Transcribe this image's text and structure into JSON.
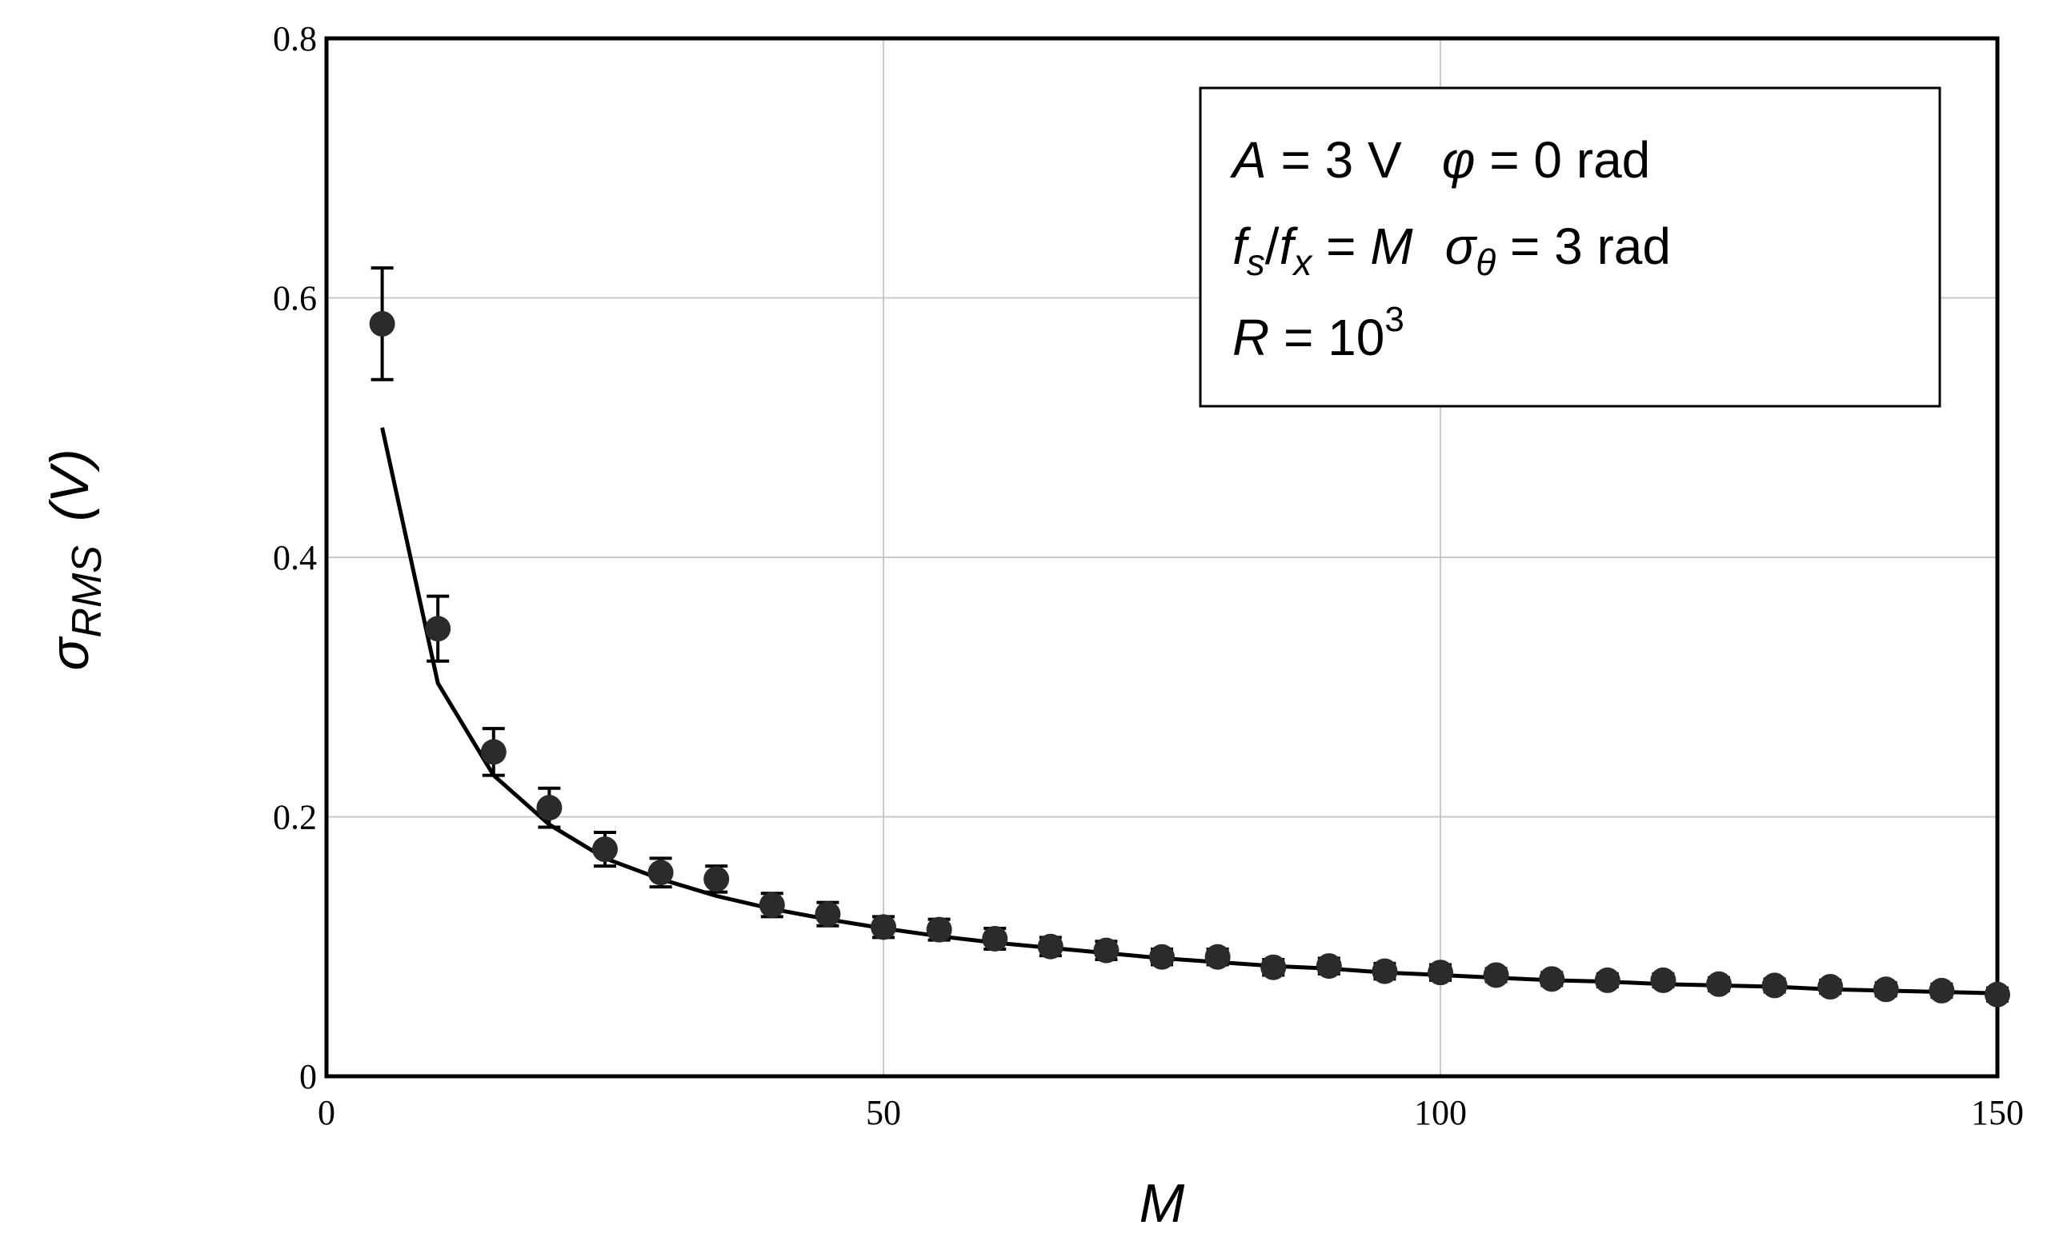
{
  "chart_data": {
    "type": "scatter",
    "title": "",
    "xlabel": "M",
    "ylabel": {
      "symbol": "σ",
      "subscript": "RMS",
      "unit": "(V)"
    },
    "xlim": [
      0,
      150
    ],
    "ylim": [
      0,
      0.8
    ],
    "xticks": [
      "0",
      "50",
      "100",
      "150"
    ],
    "yticks": [
      "0",
      "0.2",
      "0.4",
      "0.6",
      "0.8"
    ],
    "grid": true,
    "series": [
      {
        "kind": "markers_with_errorbars",
        "x": [
          5,
          10,
          15,
          20,
          25,
          30,
          35,
          40,
          45,
          50,
          55,
          60,
          65,
          70,
          75,
          80,
          85,
          90,
          95,
          100,
          105,
          110,
          115,
          120,
          125,
          130,
          135,
          140,
          145,
          150
        ],
        "y": [
          0.58,
          0.345,
          0.25,
          0.207,
          0.175,
          0.157,
          0.152,
          0.132,
          0.125,
          0.115,
          0.113,
          0.106,
          0.1,
          0.097,
          0.092,
          0.092,
          0.084,
          0.085,
          0.081,
          0.08,
          0.078,
          0.075,
          0.074,
          0.074,
          0.071,
          0.07,
          0.069,
          0.067,
          0.066,
          0.063
        ],
        "err": [
          0.043,
          0.025,
          0.018,
          0.015,
          0.013,
          0.011,
          0.01,
          0.009,
          0.009,
          0.008,
          0.008,
          0.008,
          0.007,
          0.007,
          0.006,
          0.006,
          0.006,
          0.006,
          0.006,
          0.006,
          0.005,
          0.005,
          0.005,
          0.005,
          0.005,
          0.005,
          0.005,
          0.005,
          0.005,
          0.005
        ]
      },
      {
        "kind": "line",
        "x": [
          5,
          10,
          15,
          20,
          25,
          30,
          35,
          40,
          45,
          50,
          55,
          60,
          65,
          70,
          75,
          80,
          85,
          90,
          95,
          100,
          105,
          110,
          115,
          120,
          125,
          130,
          135,
          140,
          145,
          150
        ],
        "y": [
          0.5,
          0.303,
          0.232,
          0.194,
          0.168,
          0.152,
          0.139,
          0.129,
          0.121,
          0.114,
          0.108,
          0.103,
          0.099,
          0.095,
          0.091,
          0.088,
          0.085,
          0.083,
          0.08,
          0.078,
          0.076,
          0.074,
          0.073,
          0.071,
          0.07,
          0.069,
          0.067,
          0.066,
          0.065,
          0.064
        ]
      }
    ],
    "annotation": {
      "line1": {
        "a": "A",
        "a_val": " = 3 V",
        "phi": "φ",
        "phi_val": " = 0 rad"
      },
      "line2": {
        "fs": "f",
        "fs_sub": "s",
        "slash": "/",
        "fx": "f",
        "fx_sub": "x",
        "eq": " = ",
        "m": "M",
        "sig": "σ",
        "sig_sub": "θ",
        "sig_val": " = 3 rad"
      },
      "line3": {
        "r": "R",
        "r_val": " = 10",
        "r_exp": "3"
      }
    }
  }
}
